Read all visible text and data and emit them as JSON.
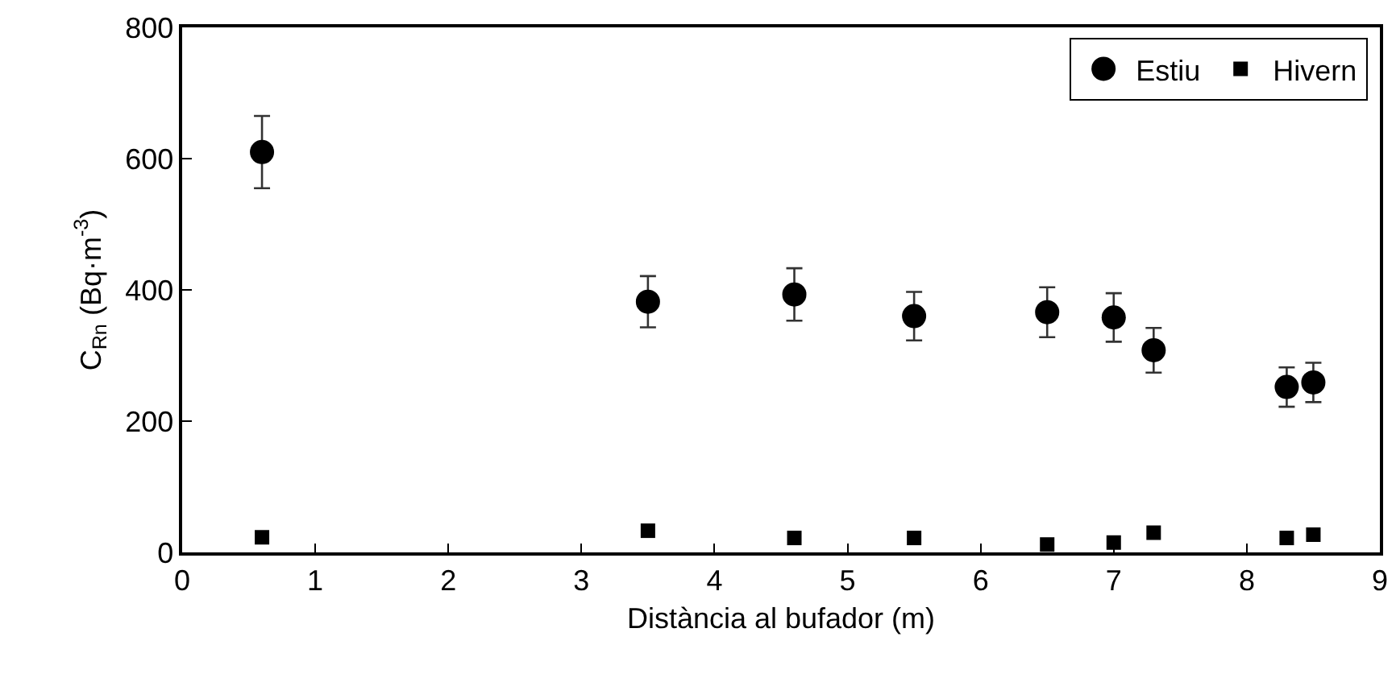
{
  "chart_data": {
    "type": "scatter",
    "xlabel": "Distància al bufador (m)",
    "ylabel": "C$_{Rn}$ (Bq·m$^{-3}$)",
    "x": [
      0.6,
      3.5,
      4.6,
      5.5,
      6.5,
      7.0,
      7.3,
      8.3,
      8.5
    ],
    "series": [
      {
        "name": "Estiu",
        "color": "#000000",
        "marker": "circle",
        "values": [
          610,
          382,
          393,
          360,
          366,
          358,
          308,
          252,
          259
        ],
        "errors": [
          55,
          39,
          40,
          37,
          38,
          37,
          34,
          30,
          30
        ]
      },
      {
        "name": "Hivern",
        "color": "#000000",
        "marker": "square",
        "values": [
          23,
          33,
          22,
          22,
          12,
          15,
          30,
          22,
          27
        ]
      }
    ],
    "xlim": [
      0,
      9
    ],
    "xticks": [
      0,
      1,
      2,
      3,
      4,
      5,
      6,
      7,
      8,
      9
    ],
    "ylim": [
      0,
      800
    ],
    "yticks": [
      0,
      200,
      400,
      600,
      800
    ],
    "grid": false,
    "legend": "top right"
  }
}
